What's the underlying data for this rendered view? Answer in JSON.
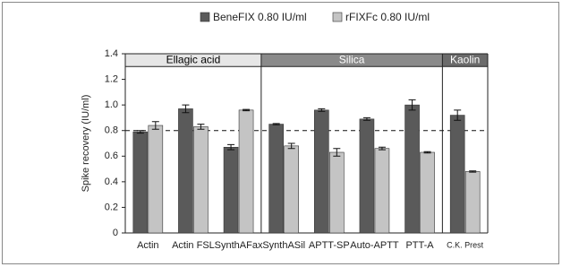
{
  "chart_data": {
    "type": "bar",
    "y_label": "Spike recovery (IU/ml)",
    "ylim": [
      0,
      1.4
    ],
    "yticks": [
      0,
      0.2,
      0.4,
      0.6,
      0.8,
      {
        "value": 1,
        "label": "1.0"
      },
      1.2,
      1.4
    ],
    "reference_line": 0.8,
    "groups": [
      {
        "name": "Ellagic acid",
        "color": "#e6e6e6",
        "text_color": "#000000",
        "categories": [
          "Actin",
          "Actin FSL",
          "SynthAFax"
        ]
      },
      {
        "name": "Silica",
        "color": "#8a8a8a",
        "text_color": "#ffffff",
        "categories": [
          "SynthASil",
          "APTT-SP",
          "Auto-APTT",
          "PTT-A"
        ]
      },
      {
        "name": "Kaolin",
        "color": "#6b6b6b",
        "text_color": "#ffffff",
        "categories": [
          "C.K. Prest"
        ]
      }
    ],
    "series": [
      {
        "name": "BeneFIX 0.80 IU/ml",
        "color": "#5a5a5a",
        "values": [
          0.79,
          0.97,
          0.67,
          0.85,
          0.96,
          0.89,
          1.0,
          0.92
        ],
        "errors": [
          0.01,
          0.03,
          0.02,
          0.005,
          0.01,
          0.01,
          0.04,
          0.04
        ]
      },
      {
        "name": "rFIXFc 0.80 IU/ml",
        "color": "#c4c4c4",
        "values": [
          0.84,
          0.83,
          0.96,
          0.68,
          0.63,
          0.66,
          0.63,
          0.48
        ],
        "errors": [
          0.03,
          0.02,
          0.005,
          0.02,
          0.03,
          0.01,
          0.005,
          0.005
        ]
      }
    ]
  }
}
